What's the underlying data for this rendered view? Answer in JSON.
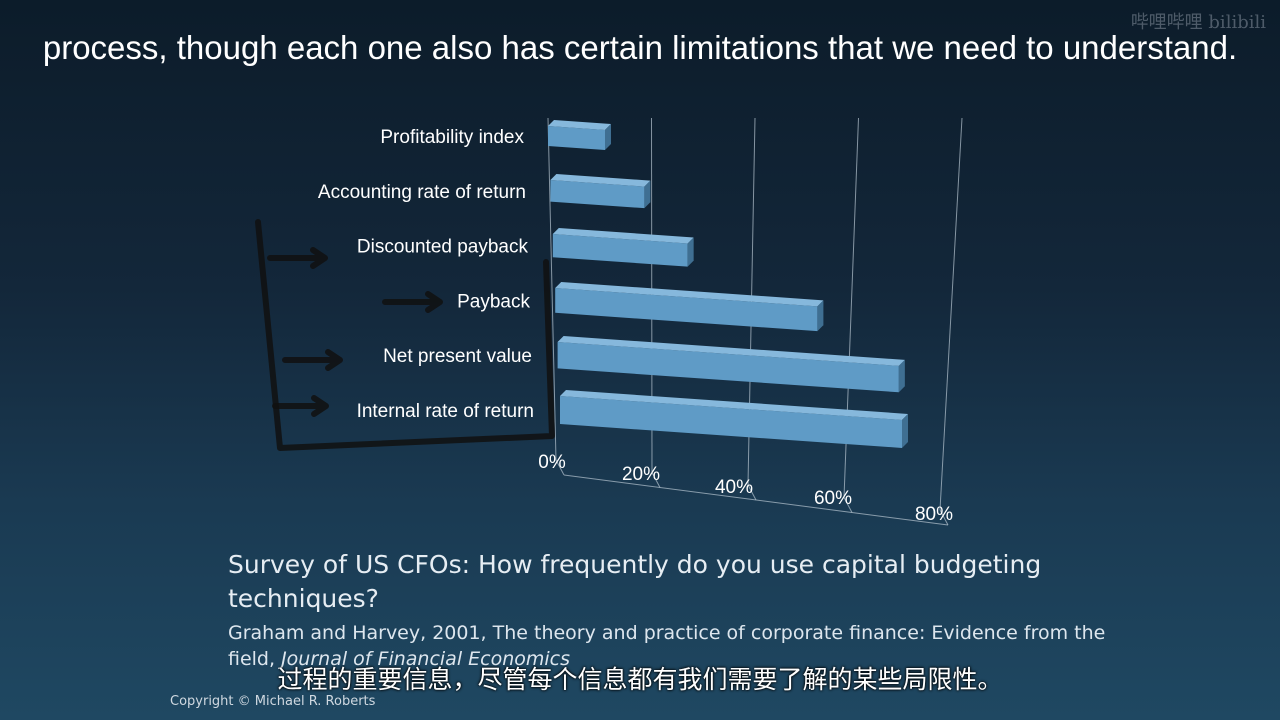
{
  "watermark": "哔哩哔哩 bilibili",
  "caption_top": "process, though each one also has certain limitations that we need to understand.",
  "caption_bottom": "过程的重要信息，尽管每个信息都有我们需要了解的某些局限性。",
  "survey_title": "Survey of US CFOs: How frequently do you use capital budgeting techniques?",
  "citation_text": "Graham and Harvey, 2001, The theory and practice of corporate finance: Evidence from the field, ",
  "citation_journal": "Journal of Financial Economics",
  "copyright": "Copyright © Michael R. Roberts",
  "colors": {
    "bar": "#5f9bc6",
    "bar_top": "#86b8dc",
    "bar_side": "#3f6f92",
    "grid": "#b8c6d2",
    "annotation": "#111111"
  },
  "chart_data": {
    "type": "bar",
    "orientation": "horizontal",
    "categories": [
      "Profitability index",
      "Accounting rate of return",
      "Discounted payback",
      "Payback",
      "Net present value",
      "Internal rate of return"
    ],
    "values": [
      12,
      20,
      29,
      57,
      75,
      76
    ],
    "x_ticks": [
      "0%",
      "20%",
      "40%",
      "60%",
      "80%"
    ],
    "xlim": [
      0,
      80
    ],
    "grid": true,
    "annotations": "hand-drawn arrows pointing to Discounted payback, Payback, Net present value, Internal rate of return"
  }
}
